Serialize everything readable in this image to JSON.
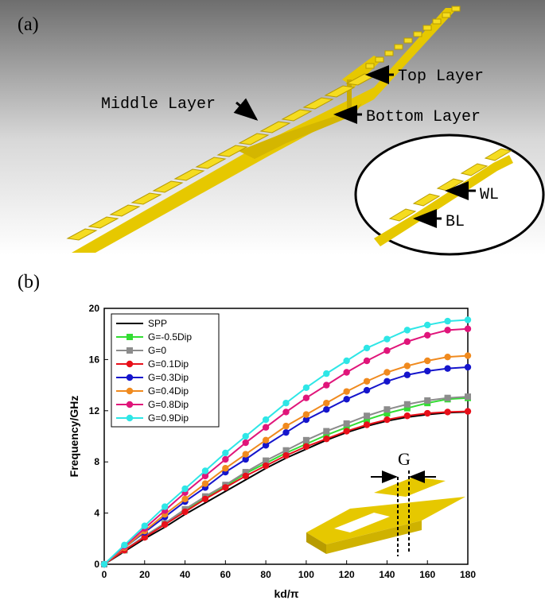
{
  "panel_a": {
    "label": "(a)",
    "top_layer": "Top Layer",
    "middle_layer": "Middle Layer",
    "bottom_layer": "Bottom Layer",
    "inset_wl": "WL",
    "inset_bl": "BL"
  },
  "panel_b": {
    "label": "(b)"
  },
  "chart_data": {
    "type": "line",
    "xlabel": "kd/π",
    "ylabel": "Frequency/GHz",
    "x": [
      0,
      10,
      20,
      30,
      40,
      50,
      60,
      70,
      80,
      90,
      100,
      110,
      120,
      130,
      140,
      150,
      160,
      170,
      180
    ],
    "xlim": [
      0,
      180
    ],
    "xticks": [
      0,
      20,
      40,
      60,
      80,
      100,
      120,
      140,
      160,
      180
    ],
    "ylim": [
      0,
      20
    ],
    "yticks": [
      0,
      4,
      8,
      12,
      16,
      20
    ],
    "legend": "upper left",
    "inset_label": "G",
    "series": [
      {
        "name": "SPP",
        "color": "#000000",
        "marker": "none",
        "values": [
          0,
          1.0,
          2.0,
          2.9,
          3.9,
          4.8,
          5.7,
          6.6,
          7.5,
          8.3,
          9.0,
          9.7,
          10.3,
          10.8,
          11.2,
          11.5,
          11.7,
          11.85,
          11.9
        ]
      },
      {
        "name": "G=-0.5Dip",
        "color": "#33dd33",
        "marker": "square",
        "values": [
          0,
          1.1,
          2.2,
          3.2,
          4.2,
          5.2,
          6.1,
          7.1,
          7.9,
          8.7,
          9.4,
          10.1,
          10.7,
          11.3,
          11.8,
          12.2,
          12.6,
          12.9,
          13.0
        ]
      },
      {
        "name": "G=0",
        "color": "#8c8c8c",
        "marker": "square",
        "values": [
          0,
          1.1,
          2.2,
          3.2,
          4.3,
          5.3,
          6.2,
          7.2,
          8.1,
          8.9,
          9.7,
          10.4,
          11.0,
          11.6,
          12.1,
          12.5,
          12.8,
          13.0,
          13.1
        ]
      },
      {
        "name": "G=0.1Dip",
        "color": "#e8101a",
        "marker": "circle",
        "values": [
          0,
          1.1,
          2.1,
          3.1,
          4.1,
          5.1,
          6.0,
          6.9,
          7.7,
          8.5,
          9.2,
          9.8,
          10.4,
          10.9,
          11.3,
          11.6,
          11.8,
          11.9,
          11.95
        ]
      },
      {
        "name": "G=0.3Dip",
        "color": "#1515cc",
        "marker": "circle",
        "values": [
          0,
          1.3,
          2.5,
          3.7,
          4.9,
          6.0,
          7.2,
          8.2,
          9.3,
          10.3,
          11.3,
          12.1,
          12.9,
          13.6,
          14.3,
          14.8,
          15.1,
          15.3,
          15.4
        ]
      },
      {
        "name": "G=0.4Dip",
        "color": "#f08a1e",
        "marker": "circle",
        "values": [
          0,
          1.3,
          2.6,
          3.9,
          5.1,
          6.3,
          7.5,
          8.6,
          9.7,
          10.8,
          11.7,
          12.6,
          13.5,
          14.3,
          15.0,
          15.5,
          15.9,
          16.2,
          16.3
        ]
      },
      {
        "name": "G=0.8Dip",
        "color": "#e0157a",
        "marker": "circle",
        "values": [
          0,
          1.4,
          2.8,
          4.2,
          5.6,
          6.9,
          8.2,
          9.5,
          10.7,
          11.9,
          13.0,
          14.0,
          15.0,
          15.9,
          16.7,
          17.4,
          17.9,
          18.3,
          18.4
        ]
      },
      {
        "name": "G=0.9Dip",
        "color": "#2ee6e6",
        "marker": "circle",
        "values": [
          0,
          1.5,
          3.0,
          4.5,
          5.9,
          7.3,
          8.7,
          10.0,
          11.3,
          12.6,
          13.8,
          14.9,
          15.9,
          16.9,
          17.6,
          18.3,
          18.7,
          19.0,
          19.1
        ]
      }
    ]
  }
}
